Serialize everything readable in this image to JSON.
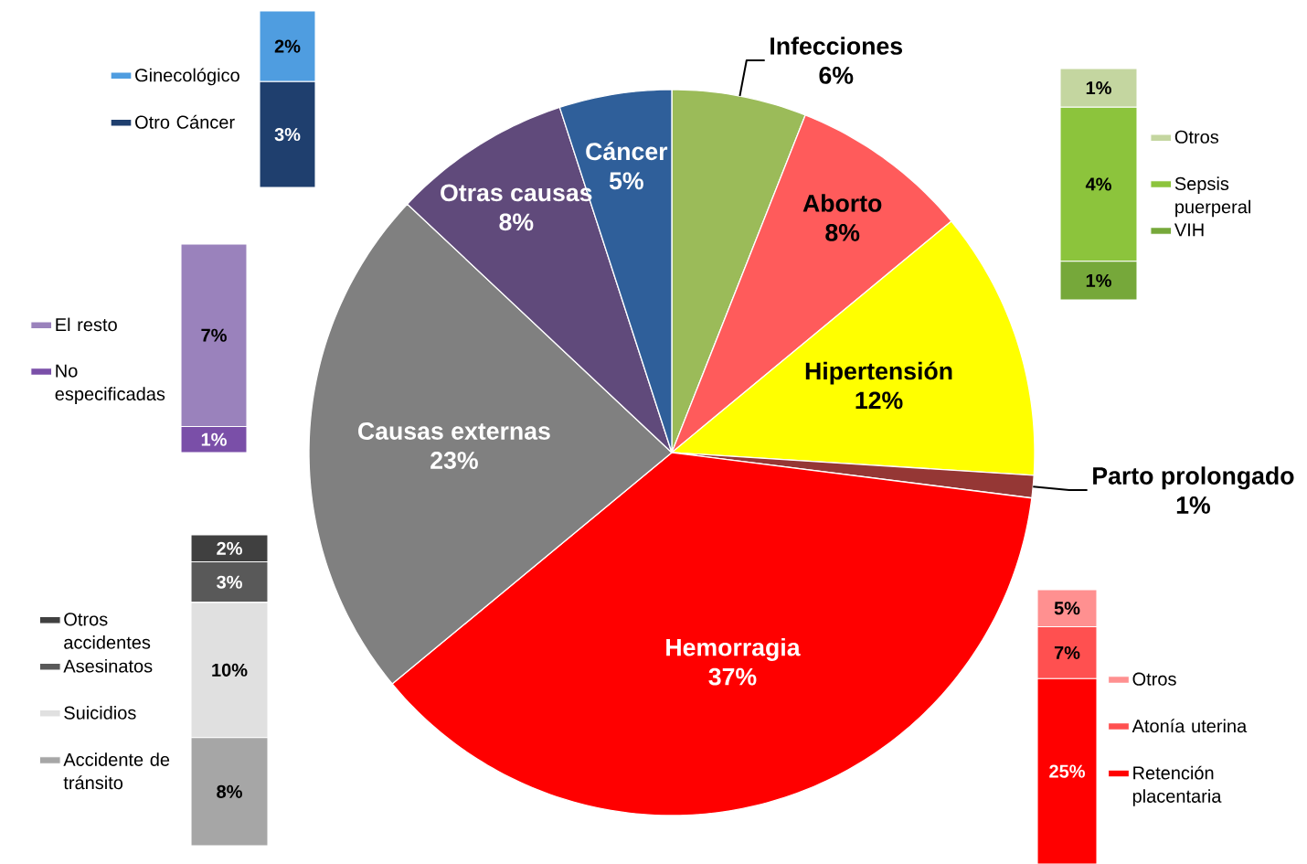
{
  "chart_data": [
    {
      "type": "pie",
      "categories": [
        "Infecciones",
        "Aborto",
        "Hipertensión",
        "Parto prolongado",
        "Hemorragia",
        "Causas externas",
        "Otras causas",
        "Cáncer"
      ],
      "values": [
        6,
        8,
        12,
        1,
        37,
        23,
        8,
        5
      ],
      "value_labels": [
        "6%",
        "8%",
        "12%",
        "1%",
        "37%",
        "23%",
        "8%",
        "5%"
      ],
      "colors": [
        "#9bbb59",
        "#ff5b5b",
        "#ffff00",
        "#953735",
        "#ff0000",
        "#808080",
        "#604a7b",
        "#2f5f9a"
      ]
    },
    {
      "type": "bar",
      "stacked": true,
      "categories": [
        null
      ],
      "legend": "left",
      "series": [
        {
          "name": "Otro Cáncer",
          "color": "#1f3f6e",
          "values": [
            3
          ],
          "value_labels": [
            "3%"
          ]
        },
        {
          "name": "Ginecológico",
          "color": "#4f9de0",
          "values": [
            2
          ],
          "value_labels": [
            "2%"
          ]
        }
      ]
    },
    {
      "type": "bar",
      "stacked": true,
      "categories": [
        null
      ],
      "legend": "right",
      "series": [
        {
          "name": "VIH",
          "color": "#76a83a",
          "values": [
            1
          ],
          "value_labels": [
            "1%"
          ]
        },
        {
          "name": "Sepsis puerperal",
          "color": "#8cc43c",
          "values": [
            4
          ],
          "value_labels": [
            "4%"
          ]
        },
        {
          "name": "Otros",
          "color": "#c4d6a0",
          "values": [
            1
          ],
          "value_labels": [
            "1%"
          ]
        }
      ]
    },
    {
      "type": "bar",
      "stacked": true,
      "categories": [
        null
      ],
      "legend": "left",
      "series": [
        {
          "name": "No especificadas",
          "color": "#7a4fa8",
          "values": [
            1
          ],
          "value_labels": [
            "1%"
          ]
        },
        {
          "name": "El resto",
          "color": "#9a82bc",
          "values": [
            7
          ],
          "value_labels": [
            "7%"
          ]
        }
      ]
    },
    {
      "type": "bar",
      "stacked": true,
      "categories": [
        null
      ],
      "legend": "left",
      "series": [
        {
          "name": "Accidente de tránsito",
          "color": "#a6a6a6",
          "values": [
            8
          ],
          "value_labels": [
            "8%"
          ]
        },
        {
          "name": "Suicidios",
          "color": "#e0e0e0",
          "values": [
            10
          ],
          "value_labels": [
            "10%"
          ]
        },
        {
          "name": "Asesinatos",
          "color": "#595959",
          "values": [
            3
          ],
          "value_labels": [
            "3%"
          ]
        },
        {
          "name": "Otros accidentes",
          "color": "#404040",
          "values": [
            2
          ],
          "value_labels": [
            "2%"
          ]
        }
      ]
    },
    {
      "type": "bar",
      "stacked": true,
      "categories": [
        null
      ],
      "legend": "right",
      "series": [
        {
          "name": "Retención placentaria",
          "color": "#ff0000",
          "values": [
            25
          ],
          "value_labels": [
            "25%"
          ]
        },
        {
          "name": "Atonía uterina",
          "color": "#ff5050",
          "values": [
            7
          ],
          "value_labels": [
            "7%"
          ]
        },
        {
          "name": "Otros",
          "color": "#ff9090",
          "values": [
            5
          ],
          "value_labels": [
            "5%"
          ]
        }
      ]
    }
  ]
}
